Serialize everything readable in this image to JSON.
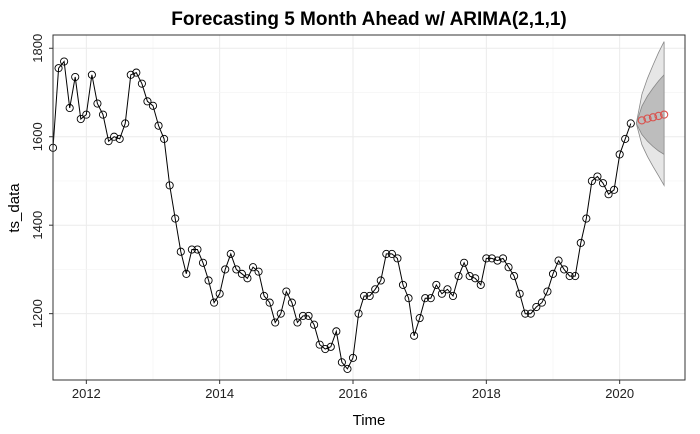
{
  "chart_data": {
    "type": "line",
    "title": "Forecasting 5 Month Ahead w/ ARIMA(2,1,1)",
    "xlabel": "Time",
    "ylabel": "ts_data",
    "xlim": [
      2011.5,
      2020.98
    ],
    "ylim": [
      1050,
      1830
    ],
    "x_ticks": [
      2012,
      2014,
      2016,
      2018,
      2020
    ],
    "x_tick_labels": [
      "2012",
      "2014",
      "2016",
      "2018",
      "2020"
    ],
    "y_ticks": [
      1200,
      1400,
      1600,
      1800
    ],
    "y_tick_labels": [
      "1200",
      "1400",
      "1600",
      "1800"
    ],
    "grid": true,
    "colors": {
      "observed": "#000000",
      "forecast_points": "#d9534f",
      "interval_80": "#bdbdbd",
      "interval_95": "#e6e6e6",
      "interval_edge": "#888888"
    },
    "series": [
      {
        "start": 2011.5,
        "step": 0.0833333,
        "values": [
          1575,
          1755,
          1770,
          1665,
          1735,
          1640,
          1650,
          1740,
          1675,
          1650,
          1590,
          1600,
          1595,
          1630,
          1740,
          1745,
          1720,
          1680,
          1670,
          1625,
          1595,
          1490,
          1415,
          1340,
          1290,
          1345,
          1345,
          1315,
          1275,
          1225,
          1245,
          1300,
          1335,
          1300,
          1290,
          1280,
          1305,
          1295,
          1240,
          1225,
          1180,
          1200,
          1250,
          1225,
          1180,
          1195,
          1195,
          1175,
          1130,
          1120,
          1125,
          1160,
          1090,
          1075,
          1100,
          1200,
          1240,
          1240,
          1255,
          1275,
          1335,
          1335,
          1325,
          1265,
          1235,
          1150,
          1190,
          1235,
          1235,
          1265,
          1245,
          1255,
          1240,
          1285,
          1315,
          1285,
          1280,
          1265,
          1325,
          1325,
          1320,
          1325,
          1305,
          1285,
          1245,
          1200,
          1200,
          1215,
          1225,
          1250,
          1290,
          1320,
          1300,
          1285,
          1285,
          1360,
          1415,
          1500,
          1510,
          1495,
          1470,
          1480,
          1560,
          1595,
          1630
        ]
      },
      {
        "x": [
          2020.333,
          2020.417,
          2020.5,
          2020.583,
          2020.667
        ],
        "values": [
          1637,
          1641,
          1644,
          1647,
          1650
        ]
      }
    ],
    "intervals": {
      "x": [
        2020.25,
        2020.333,
        2020.417,
        2020.5,
        2020.583,
        2020.667
      ],
      "lo80": [
        1630,
        1605,
        1590,
        1578,
        1568,
        1560
      ],
      "hi80": [
        1630,
        1669,
        1692,
        1710,
        1726,
        1740
      ],
      "lo95": [
        1630,
        1582,
        1555,
        1533,
        1512,
        1490
      ],
      "hi95": [
        1630,
        1696,
        1732,
        1762,
        1790,
        1815
      ]
    }
  }
}
